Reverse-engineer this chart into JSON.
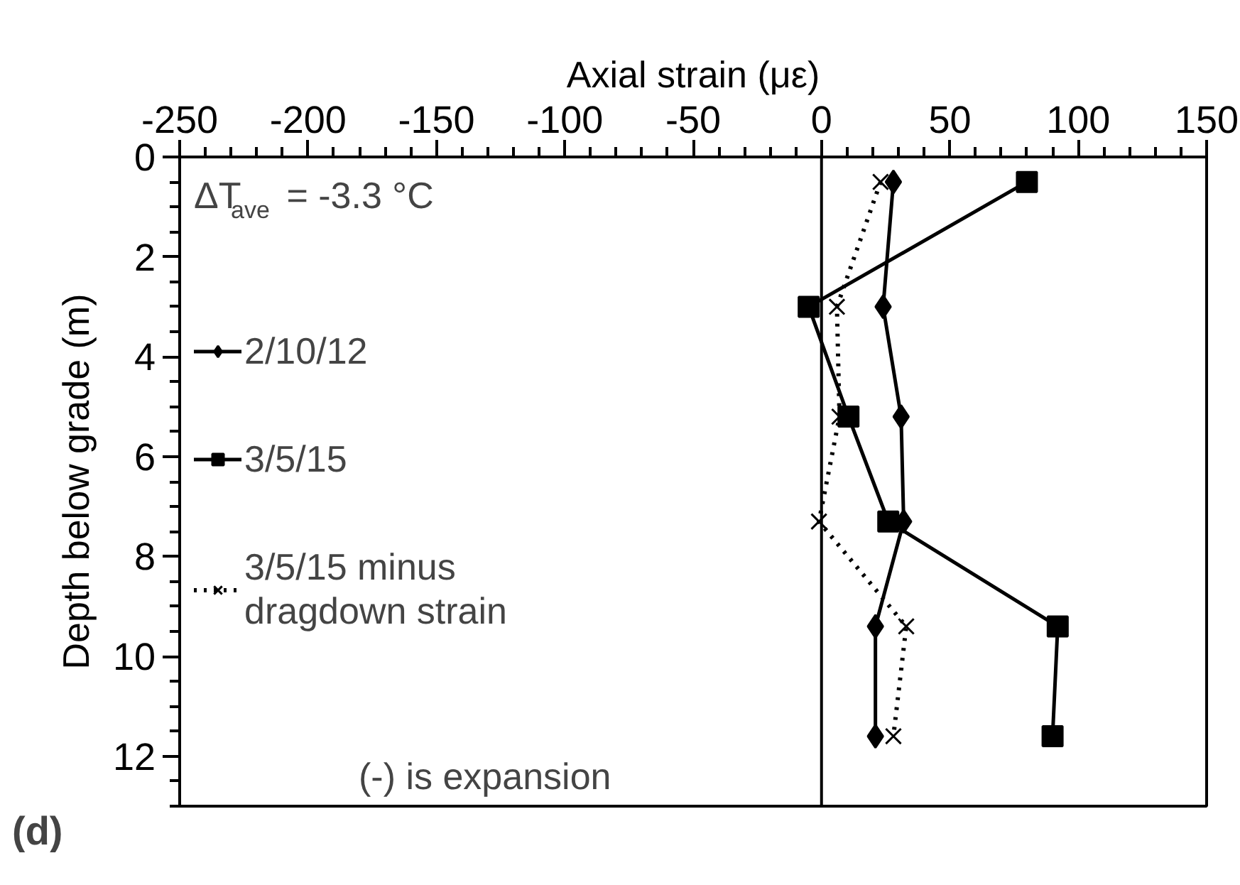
{
  "chart_data": {
    "type": "line",
    "xlabel": "Axial strain (με)",
    "ylabel": "Depth below grade (m)",
    "xlim": [
      -250,
      150
    ],
    "xticks": [
      -250,
      -200,
      -150,
      -100,
      -50,
      0,
      50,
      100,
      150
    ],
    "ylim": [
      13,
      0
    ],
    "yticks": [
      0,
      2,
      4,
      6,
      8,
      10,
      12
    ],
    "grid": false,
    "legend": "left",
    "ref_lines": [
      {
        "axis": "x",
        "value": 0,
        "color": "#000000",
        "line_style": "solid"
      }
    ],
    "annotations": [
      "ΔT$_{ave}$ = -3.3 °C",
      "(-) is expansion",
      "(d)"
    ],
    "series": [
      {
        "name": "2/10/12",
        "color": "#000000",
        "marker": "diamond",
        "line_style": "solid",
        "x": [
          28,
          24,
          31,
          32,
          21,
          21
        ],
        "values": [
          0.5,
          3,
          5.2,
          7.3,
          9.4,
          11.6
        ]
      },
      {
        "name": "3/5/15",
        "color": "#000000",
        "marker": "square",
        "line_style": "solid",
        "x": [
          80,
          -5,
          10.5,
          26,
          92,
          90
        ],
        "values": [
          0.5,
          3,
          5.2,
          7.3,
          9.4,
          11.6
        ]
      },
      {
        "name": "3/5/15 minus dragdown strain",
        "color": "#000000",
        "marker": "cross",
        "line_style": "dotted",
        "x": [
          23,
          6,
          7,
          -1,
          33,
          28
        ],
        "values": [
          0.5,
          3,
          5.2,
          7.3,
          9.4,
          11.6
        ]
      }
    ]
  }
}
